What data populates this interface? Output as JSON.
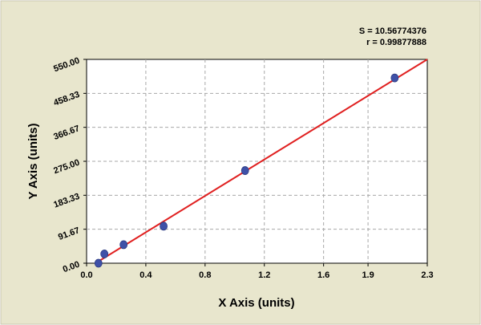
{
  "stats": {
    "s_line": "S = 10.56774376",
    "r_line": "r = 0.99877888"
  },
  "colors": {
    "background": "#e8e6cd",
    "plot_area": "#ffffff",
    "points": "#3f51a8",
    "fit_line": "#e02020",
    "grid": "#a8a8a8"
  },
  "chart_data": {
    "type": "scatter",
    "xlabel": "X Axis (units)",
    "ylabel": "Y Axis (units)",
    "xlim": [
      0.0,
      2.3
    ],
    "ylim": [
      0.0,
      550.0
    ],
    "x_ticks": [
      0.0,
      0.4,
      0.8,
      1.2,
      1.6,
      1.9,
      2.3
    ],
    "x_tick_labels": [
      "0.0",
      "0.4",
      "0.8",
      "1.2",
      "1.6",
      "1.9",
      "2.3"
    ],
    "y_ticks": [
      0.0,
      91.67,
      183.33,
      275.0,
      366.67,
      458.33,
      550.0
    ],
    "y_tick_labels": [
      "0.00",
      "91.67",
      "183.33",
      "275.00",
      "366.67",
      "458.33",
      "550.00"
    ],
    "grid": true,
    "series": [
      {
        "points": [
          {
            "x": 0.08,
            "y": 0.0
          },
          {
            "x": 0.12,
            "y": 25.0
          },
          {
            "x": 0.25,
            "y": 50.0
          },
          {
            "x": 0.52,
            "y": 100.0
          },
          {
            "x": 1.07,
            "y": 250.0
          },
          {
            "x": 2.08,
            "y": 500.0
          }
        ]
      }
    ],
    "fit_line": {
      "x1": 0.06,
      "y1": 0.0,
      "x2": 2.3,
      "y2": 550.0
    }
  }
}
